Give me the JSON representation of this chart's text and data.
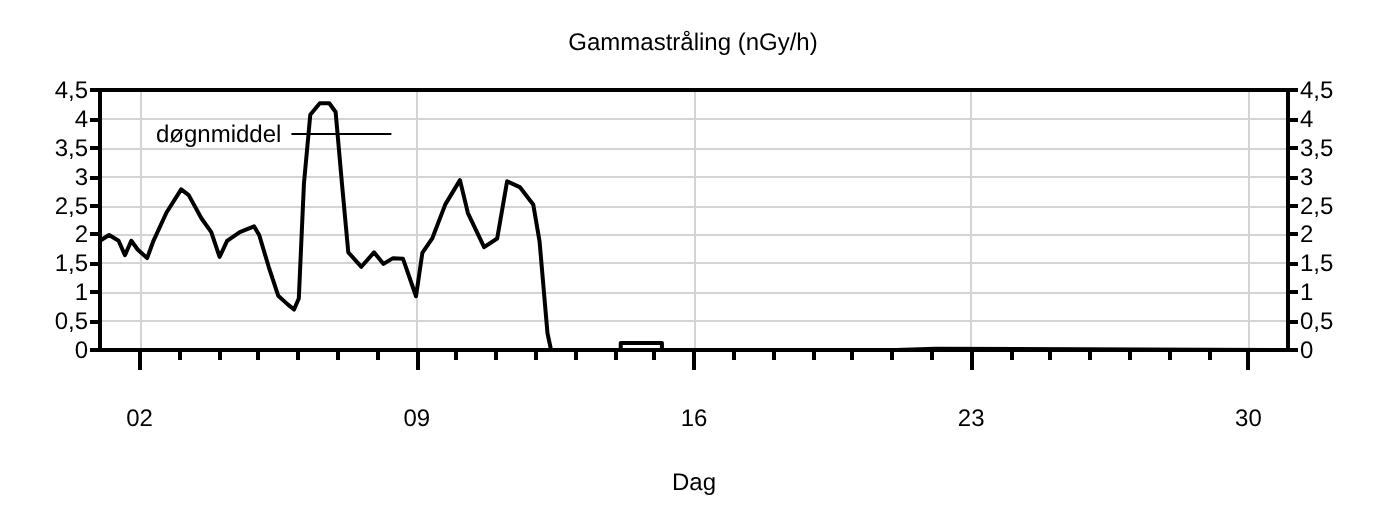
{
  "chart_data": {
    "type": "line",
    "title": "Gammastråling (nGy/h)",
    "xlabel": "Dag",
    "legend": "top left",
    "grid": true,
    "line_style": "solid",
    "marker": "none",
    "xlim": [
      1,
      31
    ],
    "xticks": [
      {
        "value": 2,
        "label": "02"
      },
      {
        "value": 3,
        "label": null
      },
      {
        "value": 4,
        "label": null
      },
      {
        "value": 5,
        "label": null
      },
      {
        "value": 6,
        "label": null
      },
      {
        "value": 7,
        "label": null
      },
      {
        "value": 8,
        "label": null
      },
      {
        "value": 9,
        "label": "09"
      },
      {
        "value": 10,
        "label": null
      },
      {
        "value": 11,
        "label": null
      },
      {
        "value": 12,
        "label": null
      },
      {
        "value": 13,
        "label": null
      },
      {
        "value": 14,
        "label": null
      },
      {
        "value": 15,
        "label": null
      },
      {
        "value": 16,
        "label": "16"
      },
      {
        "value": 17,
        "label": null
      },
      {
        "value": 18,
        "label": null
      },
      {
        "value": 19,
        "label": null
      },
      {
        "value": 20,
        "label": null
      },
      {
        "value": 21,
        "label": null
      },
      {
        "value": 22,
        "label": null
      },
      {
        "value": 23,
        "label": "23"
      },
      {
        "value": 24,
        "label": null
      },
      {
        "value": 25,
        "label": null
      },
      {
        "value": 26,
        "label": null
      },
      {
        "value": 27,
        "label": null
      },
      {
        "value": 28,
        "label": null
      },
      {
        "value": 29,
        "label": null
      },
      {
        "value": 30,
        "label": "30"
      }
    ],
    "ylim": [
      0,
      4.5
    ],
    "yticks": [
      0,
      {
        "value": 0.5,
        "label": "0,5"
      },
      1,
      {
        "value": 1.5,
        "label": "1,5"
      },
      2,
      {
        "value": 2.5,
        "label": "2,5"
      },
      3,
      {
        "value": 3.5,
        "label": "3,5"
      },
      4,
      {
        "value": 4.5,
        "label": "4,5"
      }
    ],
    "y2lim": [
      0,
      4.5
    ],
    "y2ticks": [
      0,
      {
        "value": 0.5,
        "label": "0,5"
      },
      1,
      {
        "value": 1.5,
        "label": "1,5"
      },
      2,
      {
        "value": 2.5,
        "label": "2,5"
      },
      3,
      {
        "value": 3.5,
        "label": "3,5"
      },
      4,
      {
        "value": 4.5,
        "label": "4,5"
      }
    ],
    "series": [
      {
        "name": "døgnmiddel",
        "color": "#000000",
        "x": [
          1.0,
          1.23,
          1.47,
          1.63,
          1.79,
          1.95,
          2.19,
          2.35,
          2.68,
          3.05,
          3.24,
          3.56,
          3.81,
          4.02,
          4.21,
          4.53,
          4.89,
          5.02,
          5.26,
          5.5,
          5.74,
          5.9,
          6.02,
          6.15,
          6.31,
          6.55,
          6.79,
          6.95,
          7.11,
          7.27,
          7.6,
          7.92,
          8.16,
          8.4,
          8.65,
          8.98,
          9.14,
          9.39,
          9.72,
          10.09,
          10.29,
          10.7,
          11.03,
          11.28,
          11.6,
          11.94,
          12.1,
          12.3,
          12.39,
          14.15,
          14.15,
          15.19,
          15.19,
          21.1,
          21.1,
          22.1,
          22.1,
          31
        ],
        "values": [
          1.89,
          1.99,
          1.89,
          1.64,
          1.89,
          1.74,
          1.59,
          1.89,
          2.38,
          2.78,
          2.68,
          2.28,
          2.04,
          1.61,
          1.89,
          2.04,
          2.14,
          1.99,
          1.44,
          0.94,
          0.79,
          0.7,
          0.89,
          2.88,
          4.07,
          4.27,
          4.27,
          4.12,
          2.88,
          1.69,
          1.44,
          1.69,
          1.49,
          1.59,
          1.58,
          0.93,
          1.68,
          1.93,
          2.52,
          2.94,
          2.37,
          1.78,
          1.93,
          2.92,
          2.82,
          2.52,
          1.88,
          0.29,
          0,
          0,
          0.12,
          0.12,
          0,
          0,
          0.02,
          0.02,
          0,
          0
        ]
      }
    ]
  }
}
